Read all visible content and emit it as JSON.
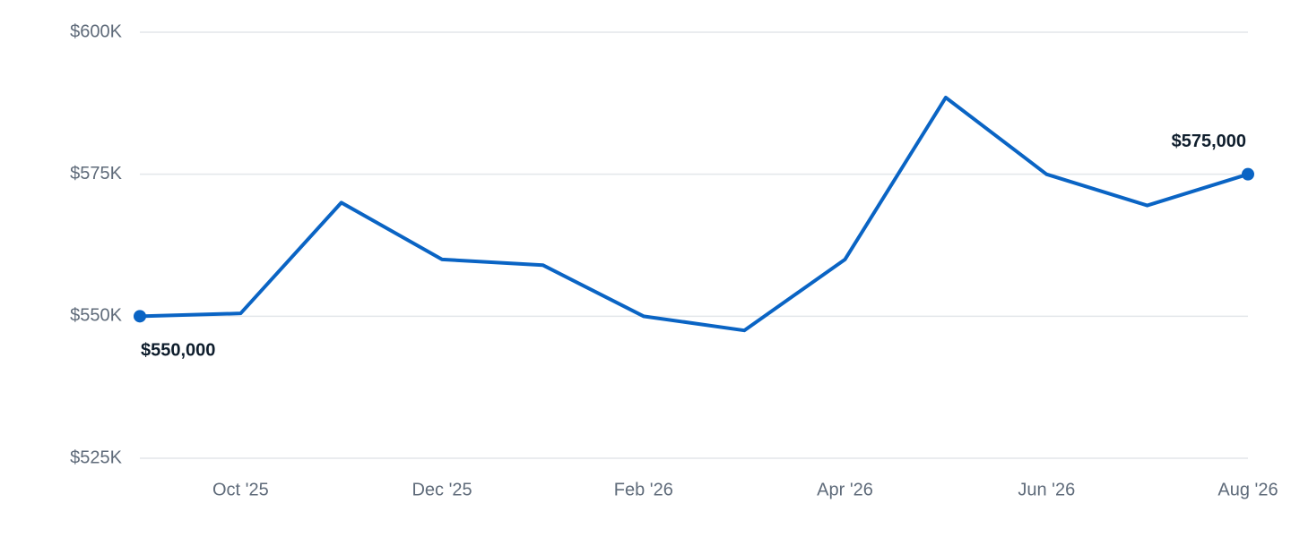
{
  "chart_data": {
    "type": "line",
    "categories": [
      null,
      "Oct '25",
      null,
      "Dec '25",
      null,
      "Feb '26",
      null,
      "Apr '26",
      null,
      "Jun '26",
      null,
      "Aug '26"
    ],
    "values": [
      550000,
      550500,
      570000,
      560000,
      559000,
      550000,
      547500,
      560000,
      588500,
      575000,
      569500,
      575000
    ],
    "value_labels": [
      "$550,000",
      null,
      null,
      null,
      null,
      null,
      null,
      null,
      null,
      null,
      null,
      "$575,000"
    ],
    "color": "#0a64c4",
    "ylim": [
      525000,
      600000
    ],
    "yticks": [
      {
        "value": 525000,
        "label": "$525K"
      },
      {
        "value": 550000,
        "label": "$550K"
      },
      {
        "value": 575000,
        "label": "$575K"
      },
      {
        "value": 600000,
        "label": "$600K"
      }
    ],
    "grid": true
  }
}
